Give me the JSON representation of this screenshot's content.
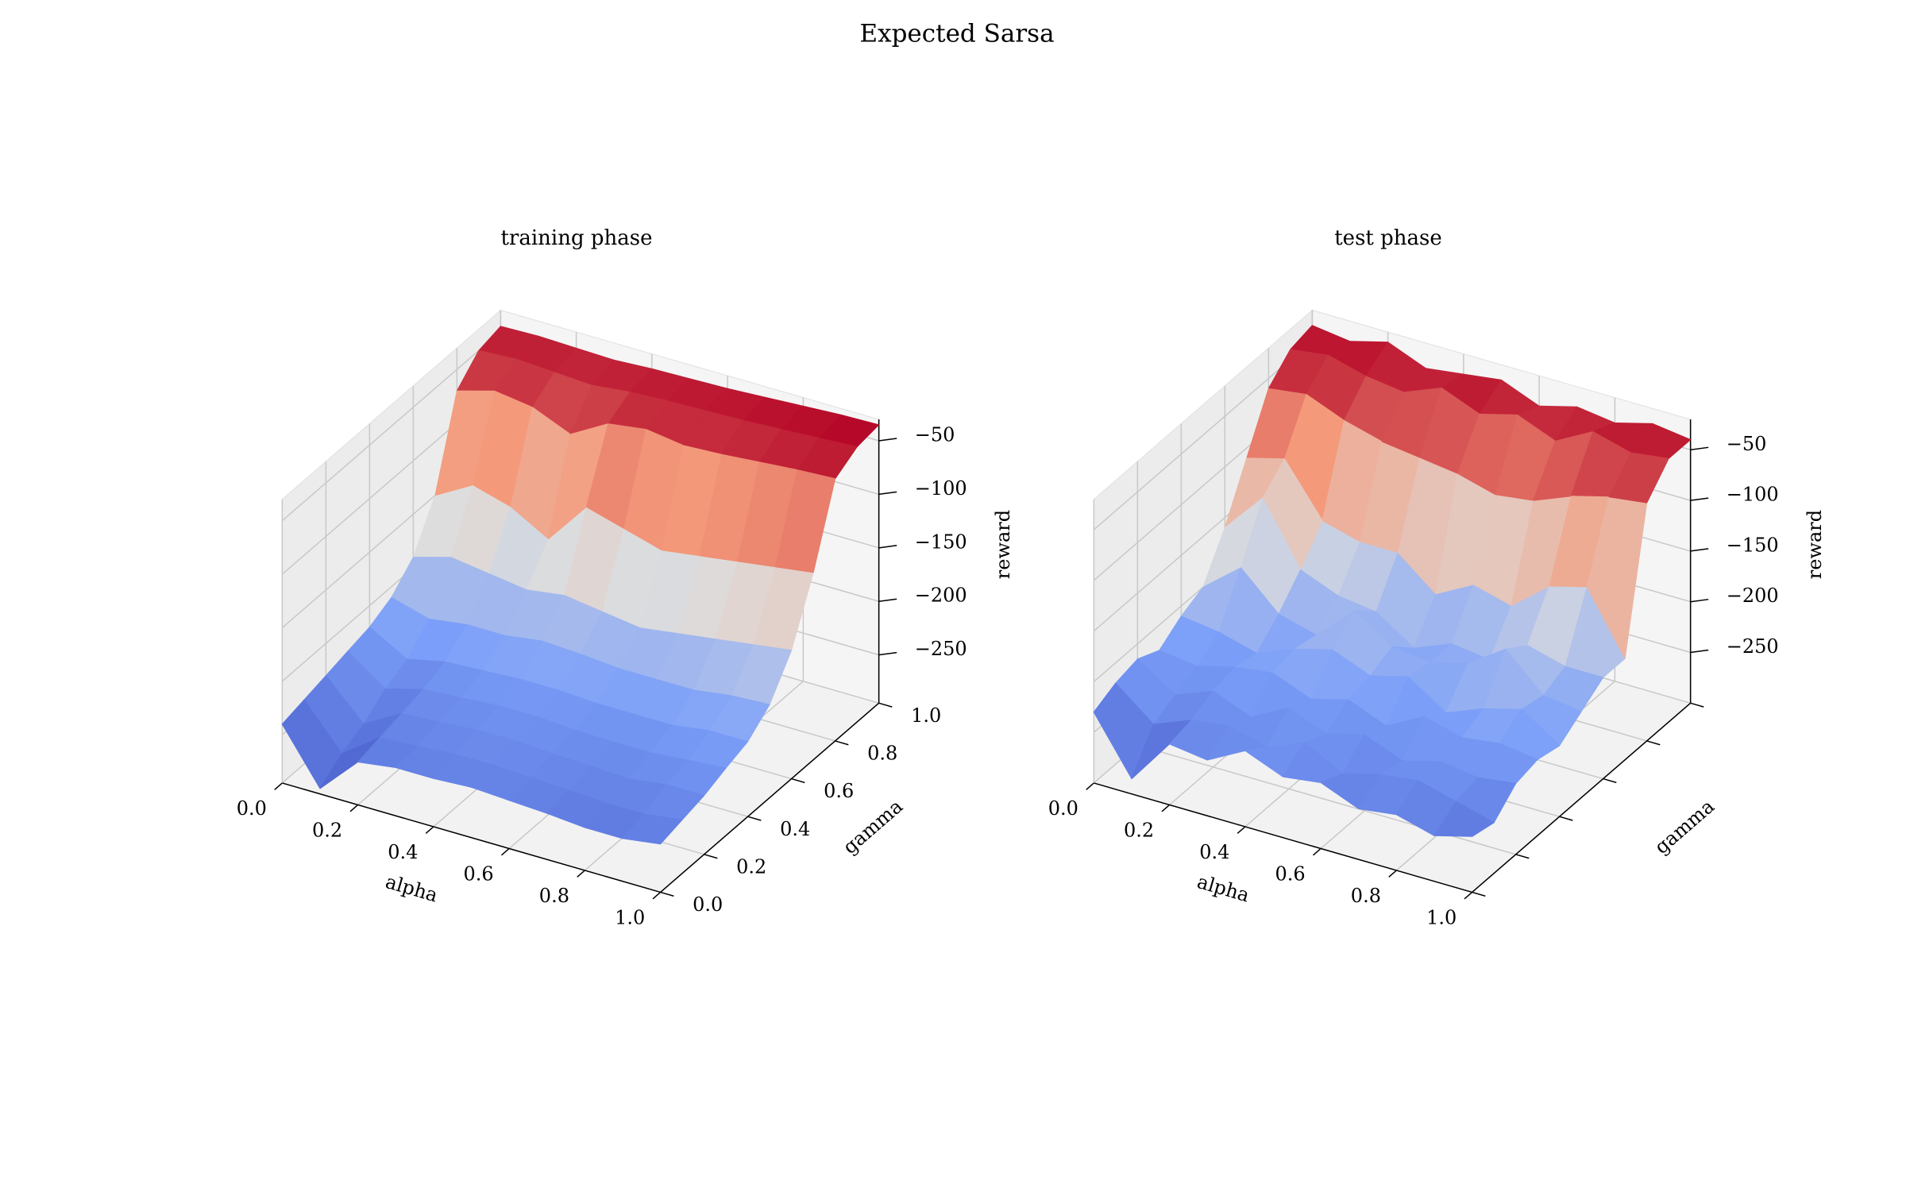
{
  "title": "Expected Sarsa",
  "chart_data": [
    {
      "type": "surface",
      "title": "training phase",
      "xlabel": "alpha",
      "ylabel": "gamma",
      "zlabel": "reward",
      "cmap": [
        "#3b4cc0",
        "#7b9ff9",
        "#dddddd",
        "#f49a7b",
        "#b40426"
      ],
      "x": [
        0,
        0.1,
        0.2,
        0.3,
        0.4,
        0.5,
        0.6,
        0.7,
        0.8,
        0.9,
        1
      ],
      "y": [
        0,
        0.1,
        0.2,
        0.3,
        0.4,
        0.5,
        0.6,
        0.7,
        0.8,
        0.9,
        1
      ],
      "z": [
        [
          -240,
          -290,
          -255,
          -250,
          -250,
          -248,
          -250,
          -252,
          -255,
          -255,
          -250
        ],
        [
          -235,
          -275,
          -250,
          -248,
          -245,
          -245,
          -247,
          -248,
          -250,
          -250,
          -245
        ],
        [
          -230,
          -265,
          -245,
          -243,
          -240,
          -240,
          -242,
          -243,
          -245,
          -240,
          -240
        ],
        [
          -225,
          -250,
          -240,
          -238,
          -235,
          -235,
          -237,
          -238,
          -238,
          -235,
          -232
        ],
        [
          -220,
          -240,
          -232,
          -230,
          -228,
          -228,
          -230,
          -230,
          -230,
          -225,
          -225
        ],
        [
          -210,
          -220,
          -215,
          -215,
          -210,
          -212,
          -215,
          -215,
          -215,
          -210,
          -208
        ],
        [
          -190,
          -180,
          -185,
          -190,
          -185,
          -190,
          -195,
          -190,
          -185,
          -180,
          -175
        ],
        [
          -150,
          -130,
          -140,
          -160,
          -120,
          -130,
          -140,
          -135,
          -130,
          -125,
          -120
        ],
        [
          -70,
          -60,
          -65,
          -80,
          -60,
          -55,
          -60,
          -58,
          -55,
          -52,
          -50
        ],
        [
          -50,
          -48,
          -50,
          -52,
          -48,
          -46,
          -45,
          -44,
          -42,
          -40,
          -38
        ],
        [
          -45,
          -44,
          -45,
          -46,
          -44,
          -43,
          -42,
          -40,
          -38,
          -36,
          -35
        ]
      ],
      "xlim": [
        0,
        1
      ],
      "ylim": [
        0,
        1
      ],
      "zlim": [
        -295,
        -30
      ],
      "xticks": [
        {
          "value": 0,
          "label": "0.0"
        },
        0.2,
        0.4,
        0.6,
        0.8,
        {
          "value": 1,
          "label": "1.0"
        }
      ],
      "yticks": [
        {
          "value": 0,
          "label": "0.0"
        },
        0.2,
        0.4,
        0.6,
        0.8,
        {
          "value": 1,
          "label": "1.0"
        }
      ],
      "zticks": [
        {
          "value": -250,
          "label": "−250"
        },
        {
          "value": -200,
          "label": "−200"
        },
        {
          "value": -150,
          "label": "−150"
        },
        {
          "value": -100,
          "label": "−100"
        },
        {
          "value": -50,
          "label": "−50"
        }
      ],
      "grid": true
    },
    {
      "type": "surface",
      "title": "test phase",
      "xlabel": "alpha",
      "ylabel": "gamma",
      "zlabel": "reward",
      "cmap": [
        "#3b4cc0",
        "#7b9ff9",
        "#dddddd",
        "#f49a7b",
        "#b40426"
      ],
      "x": [
        0,
        0.1,
        0.2,
        0.3,
        0.4,
        0.5,
        0.6,
        0.7,
        0.8,
        0.9,
        1
      ],
      "y": [
        0,
        0.1,
        0.2,
        0.3,
        0.4,
        0.5,
        0.6,
        0.7,
        0.8,
        0.9,
        1
      ],
      "z": [
        [
          -230,
          -285,
          -240,
          -245,
          -225,
          -240,
          -235,
          -250,
          -245,
          -255,
          -245
        ],
        [
          -220,
          -250,
          -235,
          -230,
          -240,
          -225,
          -245,
          -235,
          -230,
          -240,
          -250
        ],
        [
          -215,
          -240,
          -225,
          -240,
          -220,
          -235,
          -225,
          -240,
          -230,
          -235,
          -230
        ],
        [
          -225,
          -230,
          -220,
          -215,
          -230,
          -220,
          -235,
          -215,
          -225,
          -220,
          -225
        ],
        [
          -210,
          -215,
          -225,
          -210,
          -200,
          -215,
          -205,
          -230,
          -215,
          -205,
          -230
        ],
        [
          -200,
          -170,
          -205,
          -215,
          -180,
          -205,
          -210,
          -200,
          -175,
          -210,
          -215
        ],
        [
          -160,
          -120,
          -180,
          -195,
          -200,
          -225,
          -210,
          -215,
          -190,
          -200,
          -200
        ],
        [
          -110,
          -100,
          -150,
          -160,
          -160,
          -190,
          -170,
          -180,
          -150,
          -140,
          -200
        ],
        [
          -60,
          -55,
          -70,
          -80,
          -85,
          -90,
          -100,
          -95,
          -80,
          -70,
          -65
        ],
        [
          -40,
          -35,
          -45,
          -50,
          -35,
          -50,
          -40,
          -55,
          -35,
          -45,
          -40
        ],
        [
          -35,
          -40,
          -30,
          -45,
          -40,
          -35,
          -50,
          -40,
          -45,
          -35,
          -40
        ]
      ],
      "xlim": [
        0,
        1
      ],
      "ylim": [
        0,
        1
      ],
      "zlim": [
        -300,
        -20
      ],
      "xticks": [
        {
          "value": 0,
          "label": "0.0"
        },
        0.2,
        0.4,
        0.6,
        0.8,
        {
          "value": 1,
          "label": "1.0"
        }
      ],
      "yticks": [
        0,
        0.2,
        0.4,
        0.6,
        0.8,
        1
      ],
      "ytick_labels": false,
      "zticks": [
        {
          "value": -250,
          "label": "−250"
        },
        {
          "value": -200,
          "label": "−200"
        },
        {
          "value": -150,
          "label": "−150"
        },
        {
          "value": -100,
          "label": "−100"
        },
        {
          "value": -50,
          "label": "−50"
        }
      ],
      "grid": true
    }
  ]
}
